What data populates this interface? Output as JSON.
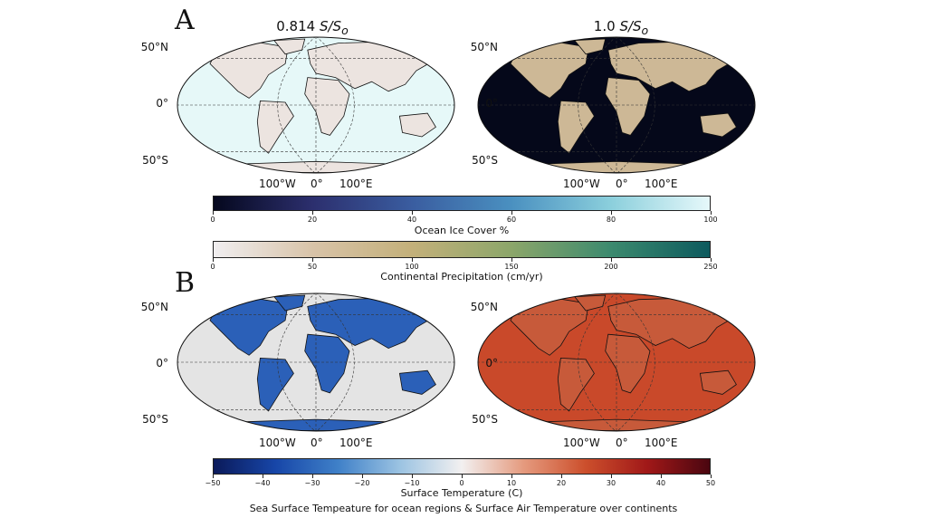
{
  "panel_a": {
    "letter": "A",
    "map_left_title": {
      "value": "0.814",
      "expr": "S/S",
      "sub": "o"
    },
    "map_right_title": {
      "value": "1.0",
      "expr": "S/S",
      "sub": "o"
    },
    "lat_labels": [
      "50°N",
      "0°",
      "50°S"
    ],
    "lon_labels": [
      "100°W",
      "0°",
      "100°E"
    ]
  },
  "panel_b": {
    "letter": "B",
    "lat_labels": [
      "50°N",
      "0°",
      "50°S"
    ],
    "lon_labels": [
      "100°W",
      "0°",
      "100°E"
    ]
  },
  "colorbars": {
    "ice": {
      "label": "Ocean Ice Cover %",
      "ticks": [
        "0",
        "20",
        "40",
        "60",
        "80",
        "100"
      ],
      "colors": [
        "#05081e",
        "#2c2f6e",
        "#3a5da0",
        "#4a90c0",
        "#8bcfdc",
        "#e6f8fa"
      ]
    },
    "precip": {
      "label": "Continental Precipitation (cm/yr)",
      "ticks": [
        "0",
        "50",
        "100",
        "150",
        "200",
        "250"
      ],
      "colors": [
        "#f0eef0",
        "#d8c3a8",
        "#c3b07a",
        "#8ca66a",
        "#3c8a6e",
        "#0d5a5e"
      ]
    },
    "temp": {
      "label": "Surface Temperature (C)",
      "ticks": [
        "−50",
        "−40",
        "−30",
        "−20",
        "−10",
        "0",
        "10",
        "20",
        "30",
        "40",
        "50"
      ],
      "colors": [
        "#0b1a5a",
        "#1746a8",
        "#3f80c8",
        "#9bc3e2",
        "#f2f0f0",
        "#e59a7e",
        "#cc4f2c",
        "#a01818",
        "#4a0610"
      ]
    }
  },
  "caption": "Sea Surface Tempeature for ocean regions & Surface Air Temperature over continents",
  "map_colors": {
    "a_left_ocean": "#e6f8f8",
    "a_left_land": "#ece4e0",
    "a_right_ocean": "#05081a",
    "a_right_land": "#cdb896",
    "b_left_ocean": "#e4e4e4",
    "b_left_land": "#2b60b8",
    "b_right_ocean": "#c9492a",
    "b_right_land": "#c75a3a"
  }
}
